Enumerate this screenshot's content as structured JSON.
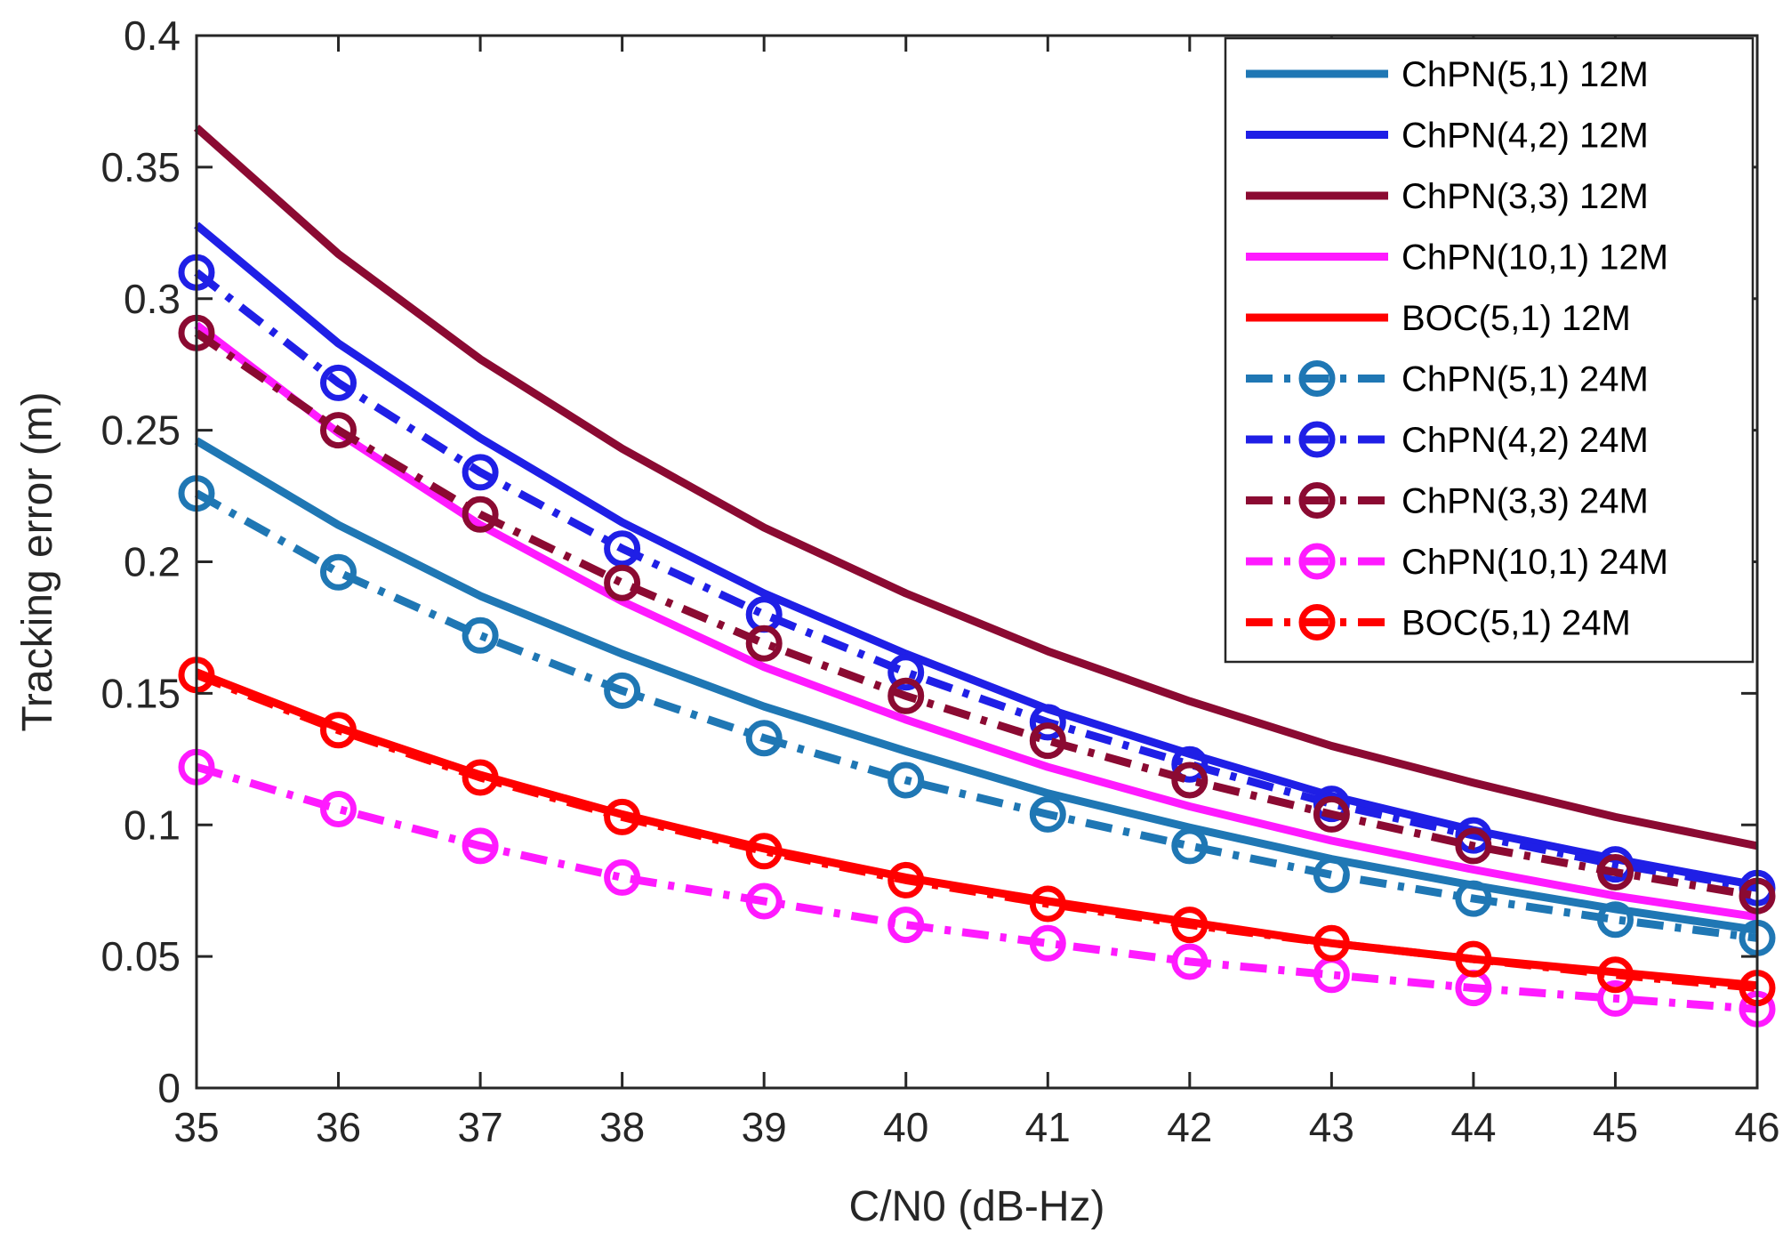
{
  "chart_data": {
    "type": "line",
    "title": "",
    "xlabel": "C/N0 (dB-Hz)",
    "ylabel": "Tracking error (m)",
    "xlim": [
      35,
      46
    ],
    "ylim": [
      0,
      0.4
    ],
    "x_ticks": [
      "35",
      "36",
      "37",
      "38",
      "39",
      "40",
      "41",
      "42",
      "43",
      "44",
      "45",
      "46"
    ],
    "y_ticks": [
      "0",
      "0.05",
      "0.1",
      "0.15",
      "0.2",
      "0.25",
      "0.3",
      "0.35",
      "0.4"
    ],
    "grid": false,
    "legend_position": "top-right",
    "x": [
      35,
      36,
      37,
      38,
      39,
      40,
      41,
      42,
      43,
      44,
      45,
      46
    ],
    "series": [
      {
        "name": "ChPN(5,1) 12M",
        "color": "#1f77b4",
        "style": "solid",
        "marker": "none",
        "values": [
          0.246,
          0.214,
          0.187,
          0.165,
          0.145,
          0.128,
          0.112,
          0.099,
          0.087,
          0.077,
          0.068,
          0.06
        ]
      },
      {
        "name": "ChPN(4,2)  12M",
        "color": "#1f1fe6",
        "style": "solid",
        "marker": "none",
        "values": [
          0.328,
          0.283,
          0.247,
          0.215,
          0.188,
          0.165,
          0.144,
          0.127,
          0.111,
          0.098,
          0.087,
          0.077
        ]
      },
      {
        "name": "ChPN(3,3)  12M",
        "color": "#8b0a32",
        "style": "solid",
        "marker": "none",
        "values": [
          0.365,
          0.317,
          0.277,
          0.243,
          0.213,
          0.188,
          0.166,
          0.147,
          0.13,
          0.116,
          0.103,
          0.092
        ]
      },
      {
        "name": "ChPN(10,1) 12M",
        "color": "#ff1aff",
        "style": "solid",
        "marker": "none",
        "values": [
          0.29,
          0.249,
          0.214,
          0.185,
          0.16,
          0.14,
          0.122,
          0.107,
          0.094,
          0.083,
          0.073,
          0.065
        ]
      },
      {
        "name": "BOC(5,1) 12M",
        "color": "#ff0000",
        "style": "solid",
        "marker": "none",
        "values": [
          0.158,
          0.137,
          0.119,
          0.104,
          0.091,
          0.08,
          0.071,
          0.063,
          0.055,
          0.049,
          0.044,
          0.039
        ]
      },
      {
        "name": "ChPN(5,1)  24M",
        "color": "#1f77b4",
        "style": "dashdot",
        "marker": "circle",
        "values": [
          0.226,
          0.196,
          0.172,
          0.151,
          0.133,
          0.117,
          0.104,
          0.092,
          0.081,
          0.072,
          0.064,
          0.057
        ]
      },
      {
        "name": "ChPN(4,2)  24M",
        "color": "#1f1fe6",
        "style": "dashdot",
        "marker": "circle",
        "values": [
          0.31,
          0.268,
          0.234,
          0.205,
          0.18,
          0.158,
          0.139,
          0.123,
          0.108,
          0.096,
          0.085,
          0.076
        ]
      },
      {
        "name": "ChPN(3,3)  24M",
        "color": "#8b0a32",
        "style": "dashdot",
        "marker": "circle",
        "values": [
          0.287,
          0.25,
          0.218,
          0.192,
          0.169,
          0.149,
          0.132,
          0.117,
          0.104,
          0.092,
          0.082,
          0.073
        ]
      },
      {
        "name": "ChPN(10,1) 24M",
        "color": "#ff1aff",
        "style": "dashdot",
        "marker": "circle",
        "values": [
          0.122,
          0.106,
          0.092,
          0.08,
          0.071,
          0.062,
          0.055,
          0.048,
          0.043,
          0.038,
          0.034,
          0.03
        ]
      },
      {
        "name": "BOC(5,1) 24M",
        "color": "#ff0000",
        "style": "dashdot",
        "marker": "circle",
        "values": [
          0.157,
          0.136,
          0.118,
          0.103,
          0.09,
          0.079,
          0.07,
          0.062,
          0.055,
          0.049,
          0.043,
          0.038
        ]
      }
    ]
  }
}
